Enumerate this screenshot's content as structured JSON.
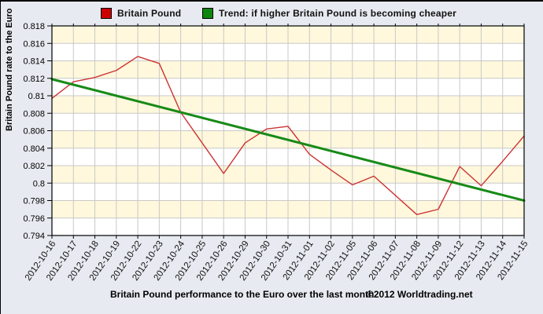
{
  "legend": {
    "items": [
      {
        "label": "Britain Pound",
        "color": "#cc0000"
      },
      {
        "label": "Trend: if higher Britain Pound is becoming cheaper",
        "color": "#0c860c"
      }
    ]
  },
  "axes": {
    "y_title": "Britain Pound rate to the Euro"
  },
  "caption": {
    "text": "Britain Pound performance to the Euro over the last month",
    "copyright": "©2012 Worldtrading.net"
  },
  "chart_data": {
    "type": "line",
    "x": [
      "2012-10-16",
      "2012-10-17",
      "2012-10-18",
      "2012-10-19",
      "2012-10-22",
      "2012-10-23",
      "2012-10-24",
      "2012-10-25",
      "2012-10-26",
      "2012-10-29",
      "2012-10-30",
      "2012-10-31",
      "2012-11-01",
      "2012-11-02",
      "2012-11-05",
      "2012-11-06",
      "2012-11-07",
      "2012-11-08",
      "2012-11-09",
      "2012-11-12",
      "2012-11-13",
      "2012-11-14",
      "2012-11-15"
    ],
    "series": [
      {
        "name": "Britain Pound",
        "color": "#cc3333",
        "values": [
          0.8097,
          0.8116,
          0.8121,
          0.8129,
          0.8145,
          0.8137,
          0.8081,
          0.8046,
          0.8011,
          0.8046,
          0.8062,
          0.8065,
          0.8033,
          0.8015,
          0.7998,
          0.8008,
          0.7986,
          0.7964,
          0.797,
          0.8019,
          0.7997,
          0.8025,
          0.8054
        ]
      },
      {
        "name": "Trend",
        "color": "#178a17",
        "trend_endpoints": [
          0.8119,
          0.798
        ]
      }
    ],
    "ylim": [
      0.794,
      0.818
    ],
    "ytick_values": [
      0.818,
      0.816,
      0.814,
      0.812,
      0.81,
      0.808,
      0.806,
      0.804,
      0.802,
      0.8,
      0.798,
      0.796,
      0.794
    ],
    "ytick_labels": [
      "0.818",
      "0.816",
      "0.814",
      "0.812",
      "0.81",
      "0.808",
      "0.806",
      "0.804",
      "0.802",
      "0.8",
      "0.798",
      "0.796",
      "0.794"
    ],
    "grid": true,
    "grid_color": "#c8c8c8",
    "band_colors": [
      "#fff8dc",
      "#ffffff"
    ],
    "legend_position": "top"
  }
}
